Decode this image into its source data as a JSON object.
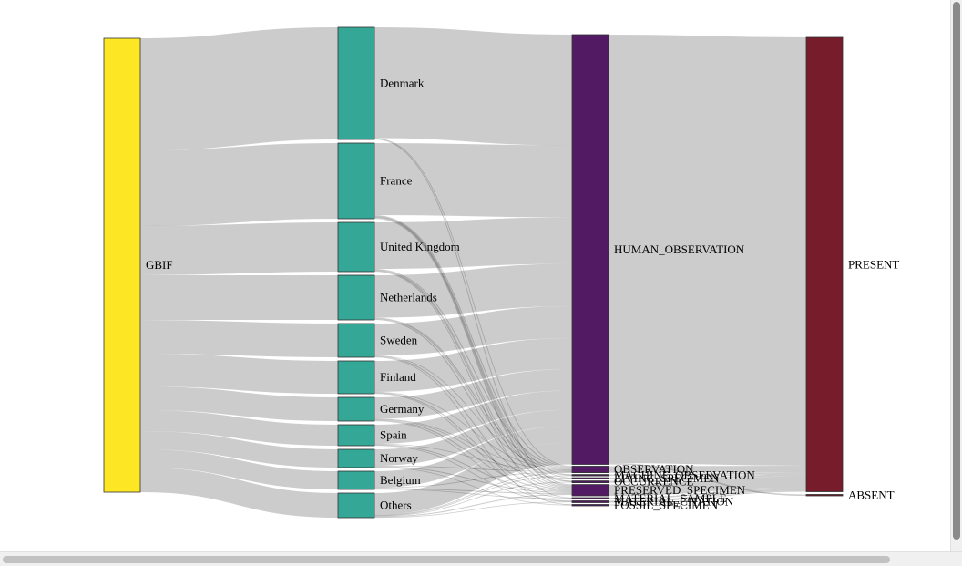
{
  "chart_data": {
    "type": "sankey",
    "nodes": [
      {
        "id": "GBIF",
        "label": "GBIF",
        "color": "#fde725"
      },
      {
        "id": "DK",
        "label": "Denmark",
        "color": "#35a796"
      },
      {
        "id": "FR",
        "label": "France",
        "color": "#35a796"
      },
      {
        "id": "UK",
        "label": "United Kingdom",
        "color": "#35a796"
      },
      {
        "id": "NL",
        "label": "Netherlands",
        "color": "#35a796"
      },
      {
        "id": "SE",
        "label": "Sweden",
        "color": "#35a796"
      },
      {
        "id": "FI",
        "label": "Finland",
        "color": "#35a796"
      },
      {
        "id": "DE",
        "label": "Germany",
        "color": "#35a796"
      },
      {
        "id": "ES",
        "label": "Spain",
        "color": "#35a796"
      },
      {
        "id": "NO",
        "label": "Norway",
        "color": "#35a796"
      },
      {
        "id": "BE",
        "label": "Belgium",
        "color": "#35a796"
      },
      {
        "id": "OT",
        "label": "Others",
        "color": "#35a796"
      },
      {
        "id": "HO",
        "label": "HUMAN_OBSERVATION",
        "color": "#521a63"
      },
      {
        "id": "OB",
        "label": "OBSERVATION",
        "color": "#521a63"
      },
      {
        "id": "MO",
        "label": "MACHINE_OBSERVATION",
        "color": "#521a63"
      },
      {
        "id": "LS",
        "label": "LIVING_SPECIMEN",
        "color": "#521a63"
      },
      {
        "id": "OC",
        "label": "OCCURRENCE",
        "color": "#521a63"
      },
      {
        "id": "PS",
        "label": "PRESERVED_SPECIMEN",
        "color": "#521a63"
      },
      {
        "id": "MS",
        "label": "MATERIAL_SAMPLE",
        "color": "#521a63"
      },
      {
        "id": "MC",
        "label": "MATERIAL_CITATION",
        "color": "#521a63"
      },
      {
        "id": "FS",
        "label": "FOSSIL_SPECIMEN",
        "color": "#521a63"
      },
      {
        "id": "PR",
        "label": "PRESENT",
        "color": "#761c2a"
      },
      {
        "id": "AB",
        "label": "ABSENT",
        "color": "#761c2a"
      }
    ],
    "columns": [
      [
        "GBIF"
      ],
      [
        "DK",
        "FR",
        "UK",
        "NL",
        "SE",
        "FI",
        "DE",
        "ES",
        "NO",
        "BE",
        "OT"
      ],
      [
        "HO",
        "OB",
        "MO",
        "LS",
        "OC",
        "PS",
        "MS",
        "MC",
        "FS"
      ],
      [
        "PR",
        "AB"
      ]
    ],
    "links": [
      {
        "source": "GBIF",
        "target": "DK",
        "value": 123
      },
      {
        "source": "GBIF",
        "target": "FR",
        "value": 83
      },
      {
        "source": "GBIF",
        "target": "UK",
        "value": 54
      },
      {
        "source": "GBIF",
        "target": "NL",
        "value": 49
      },
      {
        "source": "GBIF",
        "target": "SE",
        "value": 37
      },
      {
        "source": "GBIF",
        "target": "FI",
        "value": 36
      },
      {
        "source": "GBIF",
        "target": "DE",
        "value": 26
      },
      {
        "source": "GBIF",
        "target": "ES",
        "value": 23
      },
      {
        "source": "GBIF",
        "target": "NO",
        "value": 20
      },
      {
        "source": "GBIF",
        "target": "BE",
        "value": 20
      },
      {
        "source": "GBIF",
        "target": "OT",
        "value": 27
      },
      {
        "source": "DK",
        "target": "HO",
        "value": 121.5
      },
      {
        "source": "DK",
        "target": "OB",
        "value": 0.6
      },
      {
        "source": "DK",
        "target": "PS",
        "value": 0.9
      },
      {
        "source": "FR",
        "target": "HO",
        "value": 79
      },
      {
        "source": "FR",
        "target": "OB",
        "value": 1
      },
      {
        "source": "FR",
        "target": "MO",
        "value": 0.5
      },
      {
        "source": "FR",
        "target": "LS",
        "value": 0.5
      },
      {
        "source": "FR",
        "target": "OC",
        "value": 0.5
      },
      {
        "source": "FR",
        "target": "PS",
        "value": 1.5
      },
      {
        "source": "UK",
        "target": "HO",
        "value": 51
      },
      {
        "source": "UK",
        "target": "OB",
        "value": 1
      },
      {
        "source": "UK",
        "target": "OC",
        "value": 0.5
      },
      {
        "source": "UK",
        "target": "PS",
        "value": 1
      },
      {
        "source": "UK",
        "target": "MS",
        "value": 0.5
      },
      {
        "source": "NL",
        "target": "HO",
        "value": 46.5
      },
      {
        "source": "NL",
        "target": "OB",
        "value": 1
      },
      {
        "source": "NL",
        "target": "MO",
        "value": 0.5
      },
      {
        "source": "NL",
        "target": "PS",
        "value": 1
      },
      {
        "source": "SE",
        "target": "HO",
        "value": 35
      },
      {
        "source": "SE",
        "target": "OB",
        "value": 0.5
      },
      {
        "source": "SE",
        "target": "PS",
        "value": 1
      },
      {
        "source": "SE",
        "target": "FS",
        "value": 0.5
      },
      {
        "source": "FI",
        "target": "HO",
        "value": 34
      },
      {
        "source": "FI",
        "target": "OB",
        "value": 0.5
      },
      {
        "source": "FI",
        "target": "PS",
        "value": 1
      },
      {
        "source": "FI",
        "target": "MS",
        "value": 0.5
      },
      {
        "source": "DE",
        "target": "HO",
        "value": 23.5
      },
      {
        "source": "DE",
        "target": "OB",
        "value": 0.5
      },
      {
        "source": "DE",
        "target": "LS",
        "value": 0.5
      },
      {
        "source": "DE",
        "target": "PS",
        "value": 1
      },
      {
        "source": "DE",
        "target": "MC",
        "value": 0.5
      },
      {
        "source": "ES",
        "target": "HO",
        "value": 21
      },
      {
        "source": "ES",
        "target": "OB",
        "value": 0.5
      },
      {
        "source": "ES",
        "target": "PS",
        "value": 1
      },
      {
        "source": "ES",
        "target": "MC",
        "value": 0.5
      },
      {
        "source": "NO",
        "target": "HO",
        "value": 18
      },
      {
        "source": "NO",
        "target": "OB",
        "value": 0.5
      },
      {
        "source": "NO",
        "target": "PS",
        "value": 1
      },
      {
        "source": "NO",
        "target": "FS",
        "value": 0.5
      },
      {
        "source": "BE",
        "target": "HO",
        "value": 18
      },
      {
        "source": "BE",
        "target": "OB",
        "value": 0.5
      },
      {
        "source": "BE",
        "target": "PS",
        "value": 1
      },
      {
        "source": "BE",
        "target": "MS",
        "value": 0.5
      },
      {
        "source": "OT",
        "target": "HO",
        "value": 24
      },
      {
        "source": "OT",
        "target": "OB",
        "value": 0.5
      },
      {
        "source": "OT",
        "target": "MO",
        "value": 0.5
      },
      {
        "source": "OT",
        "target": "OC",
        "value": 0.5
      },
      {
        "source": "OT",
        "target": "PS",
        "value": 1
      },
      {
        "source": "OT",
        "target": "MC",
        "value": 0.5
      },
      {
        "source": "HO",
        "target": "PR",
        "value": 470
      },
      {
        "source": "HO",
        "target": "AB",
        "value": 1.5
      },
      {
        "source": "OB",
        "target": "PR",
        "value": 7.1
      },
      {
        "source": "MO",
        "target": "PR",
        "value": 1.5
      },
      {
        "source": "LS",
        "target": "PR",
        "value": 1
      },
      {
        "source": "OC",
        "target": "PR",
        "value": 2
      },
      {
        "source": "PS",
        "target": "PR",
        "value": 12.4
      },
      {
        "source": "MS",
        "target": "PR",
        "value": 1.5
      },
      {
        "source": "MC",
        "target": "PR",
        "value": 2
      },
      {
        "source": "FS",
        "target": "PR",
        "value": 1
      }
    ]
  }
}
